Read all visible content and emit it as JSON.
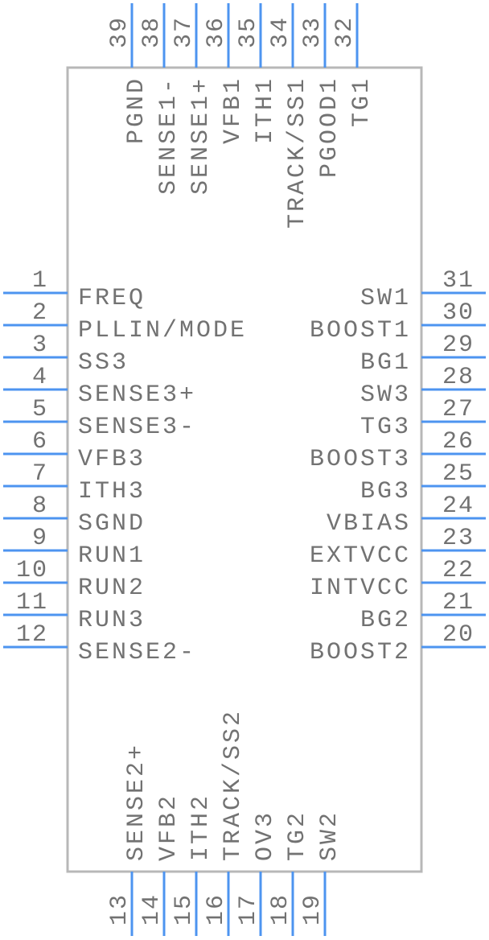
{
  "colors": {
    "pin": "#4d94f0",
    "body": "#b8b8b8",
    "text": "#727272"
  },
  "pins": {
    "left": [
      {
        "number": "1",
        "name": "FREQ"
      },
      {
        "number": "2",
        "name": "PLLIN/MODE"
      },
      {
        "number": "3",
        "name": "SS3"
      },
      {
        "number": "4",
        "name": "SENSE3+"
      },
      {
        "number": "5",
        "name": "SENSE3-"
      },
      {
        "number": "6",
        "name": "VFB3"
      },
      {
        "number": "7",
        "name": "ITH3"
      },
      {
        "number": "8",
        "name": "SGND"
      },
      {
        "number": "9",
        "name": "RUN1"
      },
      {
        "number": "10",
        "name": "RUN2"
      },
      {
        "number": "11",
        "name": "RUN3"
      },
      {
        "number": "12",
        "name": "SENSE2-"
      }
    ],
    "right": [
      {
        "number": "31",
        "name": "SW1"
      },
      {
        "number": "30",
        "name": "BOOST1"
      },
      {
        "number": "29",
        "name": "BG1"
      },
      {
        "number": "28",
        "name": "SW3"
      },
      {
        "number": "27",
        "name": "TG3"
      },
      {
        "number": "26",
        "name": "BOOST3"
      },
      {
        "number": "25",
        "name": "BG3"
      },
      {
        "number": "24",
        "name": "VBIAS"
      },
      {
        "number": "23",
        "name": "EXTVCC"
      },
      {
        "number": "22",
        "name": "INTVCC"
      },
      {
        "number": "21",
        "name": "BG2"
      },
      {
        "number": "20",
        "name": "BOOST2"
      }
    ],
    "top": [
      {
        "number": "39",
        "name": "PGND"
      },
      {
        "number": "38",
        "name": "SENSE1-"
      },
      {
        "number": "37",
        "name": "SENSE1+"
      },
      {
        "number": "36",
        "name": "VFB1"
      },
      {
        "number": "35",
        "name": "ITH1"
      },
      {
        "number": "34",
        "name": "TRACK/SS1"
      },
      {
        "number": "33",
        "name": "PGOOD1"
      },
      {
        "number": "32",
        "name": "TG1"
      }
    ],
    "bottom": [
      {
        "number": "13",
        "name": "SENSE2+"
      },
      {
        "number": "14",
        "name": "VFB2"
      },
      {
        "number": "15",
        "name": "ITH2"
      },
      {
        "number": "16",
        "name": "TRACK/SS2"
      },
      {
        "number": "17",
        "name": "OV3"
      },
      {
        "number": "18",
        "name": "TG2"
      },
      {
        "number": "19",
        "name": "SW2"
      }
    ]
  }
}
